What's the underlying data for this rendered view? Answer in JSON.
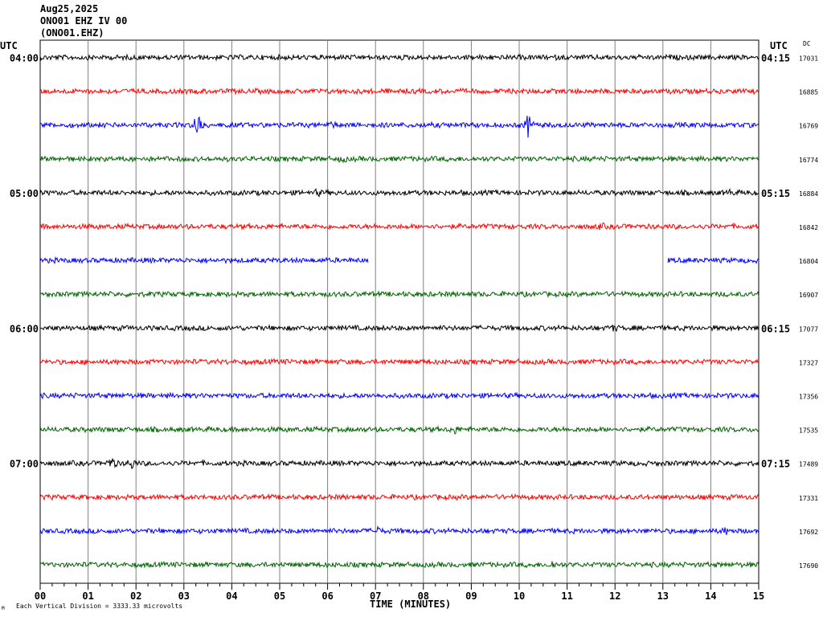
{
  "header": {
    "date": "Aug25,2025",
    "station": "ONO01 EHZ IV 00",
    "channel": "(ONO01.EHZ)"
  },
  "labels": {
    "utc_left": "UTC",
    "utc_right": "UTC",
    "dc": "DC",
    "footnote": "Each Vertical Division = 3333.33 microvolts",
    "footmark": "M"
  },
  "colors": {
    "trace_cycle": [
      "#000000",
      "#ff0000",
      "#0000ff",
      "#006400"
    ],
    "grid": "#808080"
  },
  "chart_data": {
    "type": "line",
    "xlabel": "TIME (MINUTES)",
    "xlim": [
      0,
      15
    ],
    "x_ticks": [
      "00",
      "01",
      "02",
      "03",
      "04",
      "05",
      "06",
      "07",
      "08",
      "09",
      "10",
      "11",
      "12",
      "13",
      "14",
      "15"
    ],
    "grid": true,
    "rows": [
      {
        "left": "04:00",
        "right": "04:15",
        "dc": "17031"
      },
      {
        "left": "",
        "right": "",
        "dc": "16885"
      },
      {
        "left": "",
        "right": "",
        "dc": "16769",
        "events": [
          {
            "t": 3.3,
            "amp": 3.5
          },
          {
            "t": 10.2,
            "amp": 3.0
          },
          {
            "t": 6.1,
            "amp": 1.4
          }
        ]
      },
      {
        "left": "",
        "right": "",
        "dc": "16774",
        "events": [
          {
            "t": 6.3,
            "amp": 1.4
          }
        ]
      },
      {
        "left": "05:00",
        "right": "05:15",
        "dc": "16884",
        "events": [
          {
            "t": 5.8,
            "amp": 1.3
          },
          {
            "t": 14.4,
            "amp": 1.3
          }
        ]
      },
      {
        "left": "",
        "right": "",
        "dc": "16842",
        "events": [
          {
            "t": 11.7,
            "amp": 1.3
          }
        ]
      },
      {
        "left": "",
        "right": "",
        "dc": "16804",
        "gap": [
          6.85,
          13.1
        ]
      },
      {
        "left": "",
        "right": "",
        "dc": "16907"
      },
      {
        "left": "06:00",
        "right": "06:15",
        "dc": "17077",
        "events": [
          {
            "t": 11.95,
            "amp": 1.4
          }
        ]
      },
      {
        "left": "",
        "right": "",
        "dc": "17327"
      },
      {
        "left": "",
        "right": "",
        "dc": "17356"
      },
      {
        "left": "",
        "right": "",
        "dc": "17535",
        "events": [
          {
            "t": 8.65,
            "amp": 1.5
          }
        ]
      },
      {
        "left": "07:00",
        "right": "07:15",
        "dc": "17489",
        "events": [
          {
            "t": 1.5,
            "amp": 2.0
          },
          {
            "t": 1.9,
            "amp": 1.8
          }
        ]
      },
      {
        "left": "",
        "right": "",
        "dc": "17331"
      },
      {
        "left": "",
        "right": "",
        "dc": "17692",
        "events": [
          {
            "t": 7.05,
            "amp": 1.5
          },
          {
            "t": 14.3,
            "amp": 1.4
          }
        ]
      },
      {
        "left": "",
        "right": "",
        "dc": "17690",
        "events": [
          {
            "t": 10.7,
            "amp": 1.5
          }
        ]
      }
    ]
  }
}
